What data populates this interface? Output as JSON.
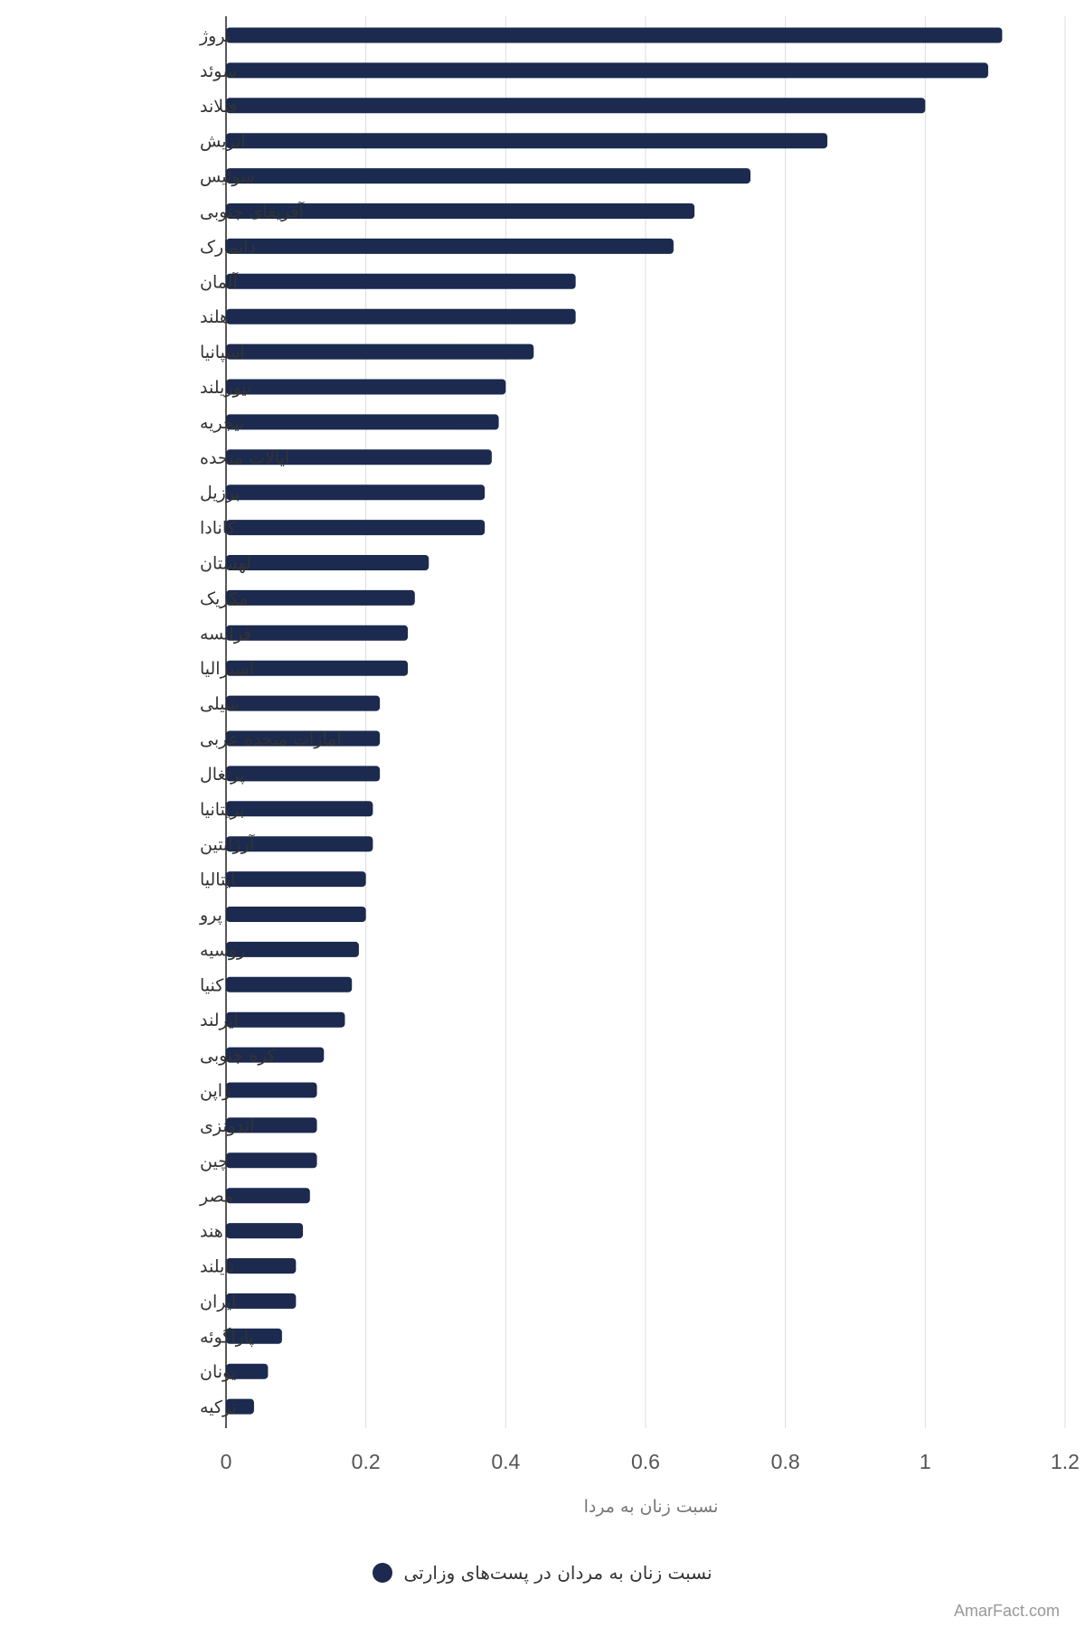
{
  "chart_data": {
    "type": "bar",
    "orientation": "horizontal",
    "categories": [
      "نروژ",
      "سوئد",
      "فنلاند",
      "اتریش",
      "سوئیس",
      "آفریقای جنوبی",
      "دانمارک",
      "آلمان",
      "هلند",
      "اسپانیا",
      "نیوزیلند",
      "نیجریه",
      "ایالات متحده",
      "برزیل",
      "کانادا",
      "لهستان",
      "مکزیک",
      "فرانسه",
      "استرالیا",
      "شیلی",
      "امارات متحده عربی",
      "پرتغال",
      "بریتانیا",
      "آرژانتین",
      "ایتالیا",
      "پرو",
      "روسیه",
      "کنیا",
      "ایرلند",
      "کره جنوبی",
      "ژاپن",
      "اندونزی",
      "چین",
      "مصر",
      "هند",
      "تایلند",
      "ایران",
      "پاراگوئه",
      "یونان",
      "ترکیه"
    ],
    "series": [
      {
        "name": "نسبت زنان به مردان در پست‌های وزارتی",
        "color": "#1b2a4e",
        "values": [
          1.11,
          1.09,
          1.0,
          0.86,
          0.75,
          0.67,
          0.64,
          0.5,
          0.5,
          0.44,
          0.4,
          0.39,
          0.38,
          0.37,
          0.37,
          0.29,
          0.27,
          0.26,
          0.26,
          0.22,
          0.22,
          0.22,
          0.21,
          0.21,
          0.2,
          0.2,
          0.19,
          0.18,
          0.17,
          0.14,
          0.13,
          0.13,
          0.13,
          0.12,
          0.11,
          0.1,
          0.1,
          0.08,
          0.06,
          0.04
        ]
      }
    ],
    "xlabel": "نسبت زنان به مردا",
    "ylabel": "",
    "xlim": [
      0,
      1.2
    ],
    "xticks": [
      "0",
      "0.2",
      "0.4",
      "0.6",
      "0.8",
      "1",
      "1.2"
    ],
    "grid": "vertical",
    "legend_position": "bottom"
  },
  "credit": "AmarFact.com"
}
